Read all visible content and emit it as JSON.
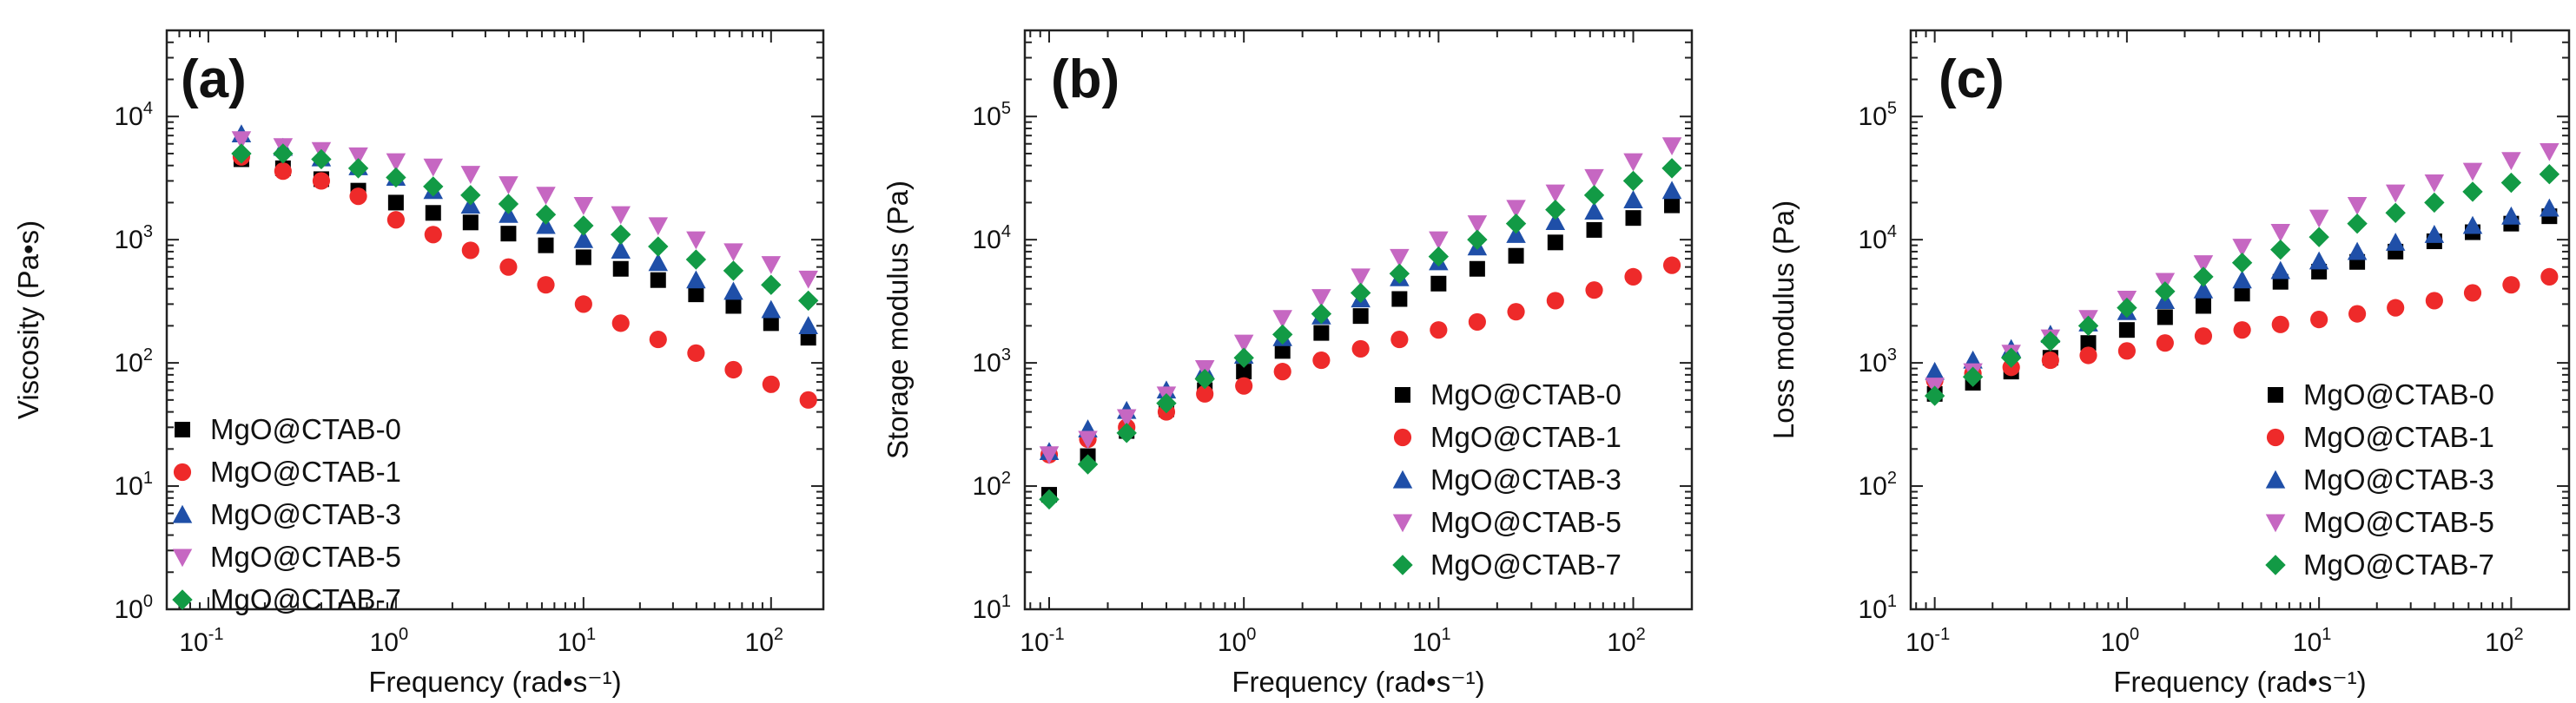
{
  "chart_data": [
    {
      "type": "scatter",
      "panel_label": "(a)",
      "xlabel": "Frequency (rad•s⁻¹)",
      "ylabel": "Viscosity (Pa•s)",
      "xscale": "log",
      "yscale": "log",
      "xlim": [
        0.06,
        190
      ],
      "ylim": [
        1,
        50000
      ],
      "xticks": [
        {
          "v": 0.1,
          "b": "10",
          "e": "-1"
        },
        {
          "v": 1,
          "b": "10",
          "e": "0"
        },
        {
          "v": 10,
          "b": "10",
          "e": "1"
        },
        {
          "v": 100,
          "b": "10",
          "e": "2"
        }
      ],
      "yticks": [
        {
          "v": 1,
          "b": "10",
          "e": "0"
        },
        {
          "v": 10,
          "b": "10",
          "e": "1"
        },
        {
          "v": 100,
          "b": "10",
          "e": "2"
        },
        {
          "v": 1000,
          "b": "10",
          "e": "3"
        },
        {
          "v": 10000,
          "b": "10",
          "e": "4"
        }
      ],
      "legend_position": "lower-left",
      "x": [
        0.15,
        0.25,
        0.4,
        0.63,
        1.0,
        1.58,
        2.5,
        3.98,
        6.3,
        10,
        15.8,
        25,
        39.8,
        63,
        100,
        158
      ],
      "series": [
        {
          "name": "MgO@CTAB-0",
          "marker": "square",
          "color": "#000000",
          "values": [
            4500,
            3800,
            3100,
            2500,
            2000,
            1650,
            1380,
            1120,
            900,
            720,
            580,
            470,
            360,
            290,
            210,
            160
          ]
        },
        {
          "name": "MgO@CTAB-1",
          "marker": "circle",
          "color": "#ee2a2a",
          "values": [
            4700,
            3600,
            3000,
            2250,
            1450,
            1100,
            820,
            600,
            430,
            300,
            210,
            155,
            120,
            88,
            67,
            50
          ]
        },
        {
          "name": "MgO@CTAB-3",
          "marker": "triangle-up",
          "color": "#1f4fa8",
          "values": [
            7200,
            5600,
            4600,
            3900,
            3200,
            2500,
            1900,
            1600,
            1300,
            1000,
            820,
            650,
            470,
            380,
            270,
            200
          ]
        },
        {
          "name": "MgO@CTAB-5",
          "marker": "triangle-down",
          "color": "#c667c2",
          "values": [
            6500,
            5700,
            5300,
            4800,
            4300,
            3900,
            3400,
            2800,
            2300,
            1900,
            1600,
            1300,
            1000,
            800,
            630,
            480
          ]
        },
        {
          "name": "MgO@CTAB-7",
          "marker": "diamond",
          "color": "#129a45",
          "values": [
            5000,
            5000,
            4500,
            3800,
            3200,
            2700,
            2300,
            1950,
            1600,
            1300,
            1100,
            880,
            690,
            560,
            430,
            320
          ]
        }
      ]
    },
    {
      "type": "scatter",
      "panel_label": "(b)",
      "xlabel": "Frequency (rad•s⁻¹)",
      "ylabel": "Storage modulus (Pa)",
      "xscale": "log",
      "yscale": "log",
      "xlim": [
        0.075,
        200
      ],
      "ylim": [
        10,
        500000
      ],
      "xticks": [
        {
          "v": 0.1,
          "b": "10",
          "e": "-1"
        },
        {
          "v": 1,
          "b": "10",
          "e": "0"
        },
        {
          "v": 10,
          "b": "10",
          "e": "1"
        },
        {
          "v": 100,
          "b": "10",
          "e": "2"
        }
      ],
      "yticks": [
        {
          "v": 10,
          "b": "10",
          "e": "1"
        },
        {
          "v": 100,
          "b": "10",
          "e": "2"
        },
        {
          "v": 1000,
          "b": "10",
          "e": "3"
        },
        {
          "v": 10000,
          "b": "10",
          "e": "4"
        },
        {
          "v": 100000,
          "b": "10",
          "e": "5"
        }
      ],
      "legend_position": "lower-right",
      "x": [
        0.1,
        0.158,
        0.25,
        0.4,
        0.63,
        1.0,
        1.58,
        2.5,
        3.98,
        6.3,
        10,
        15.8,
        25,
        39.8,
        63,
        100,
        158
      ],
      "series": [
        {
          "name": "MgO@CTAB-0",
          "marker": "square",
          "color": "#000000",
          "values": [
            85,
            175,
            280,
            420,
            600,
            850,
            1250,
            1750,
            2400,
            3300,
            4400,
            5800,
            7400,
            9500,
            12000,
            15000,
            19000
          ]
        },
        {
          "name": "MgO@CTAB-1",
          "marker": "circle",
          "color": "#ee2a2a",
          "values": [
            180,
            240,
            300,
            400,
            560,
            650,
            850,
            1050,
            1300,
            1550,
            1850,
            2150,
            2600,
            3200,
            3900,
            5000,
            6200
          ]
        },
        {
          "name": "MgO@CTAB-3",
          "marker": "triangle-up",
          "color": "#1f4fa8",
          "values": [
            190,
            290,
            410,
            600,
            870,
            1150,
            1600,
            2400,
            3300,
            4900,
            6600,
            8700,
            11000,
            14000,
            17000,
            21000,
            25000
          ]
        },
        {
          "name": "MgO@CTAB-5",
          "marker": "triangle-down",
          "color": "#c667c2",
          "values": [
            180,
            240,
            360,
            550,
            900,
            1450,
            2300,
            3400,
            5000,
            7200,
            10000,
            13500,
            18000,
            24000,
            32000,
            43000,
            58000
          ]
        },
        {
          "name": "MgO@CTAB-7",
          "marker": "diamond",
          "color": "#129a45",
          "values": [
            78,
            150,
            270,
            470,
            740,
            1100,
            1700,
            2500,
            3700,
            5300,
            7300,
            10000,
            13500,
            17500,
            23000,
            30000,
            38000
          ]
        }
      ]
    },
    {
      "type": "scatter",
      "panel_label": "(c)",
      "xlabel": "Frequency (rad•s⁻¹)",
      "ylabel": "Loss modulus (Pa)",
      "xscale": "log",
      "yscale": "log",
      "xlim": [
        0.075,
        200
      ],
      "ylim": [
        10,
        500000
      ],
      "xticks": [
        {
          "v": 0.1,
          "b": "10",
          "e": "-1"
        },
        {
          "v": 1,
          "b": "10",
          "e": "0"
        },
        {
          "v": 10,
          "b": "10",
          "e": "1"
        },
        {
          "v": 100,
          "b": "10",
          "e": "2"
        }
      ],
      "yticks": [
        {
          "v": 10,
          "b": "10",
          "e": "1"
        },
        {
          "v": 100,
          "b": "10",
          "e": "2"
        },
        {
          "v": 1000,
          "b": "10",
          "e": "3"
        },
        {
          "v": 10000,
          "b": "10",
          "e": "4"
        },
        {
          "v": 100000,
          "b": "10",
          "e": "5"
        }
      ],
      "legend_position": "lower-right",
      "x": [
        0.1,
        0.158,
        0.25,
        0.4,
        0.63,
        1.0,
        1.58,
        2.5,
        3.98,
        6.3,
        10,
        15.8,
        25,
        39.8,
        63,
        100,
        158
      ],
      "series": [
        {
          "name": "MgO@CTAB-0",
          "marker": "square",
          "color": "#000000",
          "values": [
            560,
            690,
            850,
            1100,
            1450,
            1850,
            2350,
            2900,
            3650,
            4550,
            5500,
            6600,
            8000,
            9700,
            11500,
            13500,
            15500
          ]
        },
        {
          "name": "MgO@CTAB-1",
          "marker": "circle",
          "color": "#ee2a2a",
          "values": [
            720,
            820,
            920,
            1050,
            1150,
            1250,
            1450,
            1650,
            1850,
            2050,
            2250,
            2500,
            2800,
            3200,
            3700,
            4300,
            5000
          ]
        },
        {
          "name": "MgO@CTAB-3",
          "marker": "triangle-up",
          "color": "#1f4fa8",
          "values": [
            850,
            1050,
            1300,
            1700,
            2100,
            2600,
            3200,
            3900,
            4700,
            5600,
            6700,
            8000,
            9500,
            11000,
            13000,
            15500,
            18000
          ]
        },
        {
          "name": "MgO@CTAB-5",
          "marker": "triangle-down",
          "color": "#c667c2",
          "values": [
            650,
            850,
            1200,
            1600,
            2300,
            3300,
            4600,
            6400,
            8700,
            11500,
            15000,
            19000,
            24000,
            29000,
            36000,
            44000,
            52000
          ]
        },
        {
          "name": "MgO@CTAB-7",
          "marker": "diamond",
          "color": "#129a45",
          "values": [
            540,
            770,
            1100,
            1500,
            2000,
            2800,
            3800,
            5000,
            6500,
            8300,
            10500,
            13500,
            16500,
            20000,
            24500,
            29000,
            34000
          ]
        }
      ]
    }
  ]
}
